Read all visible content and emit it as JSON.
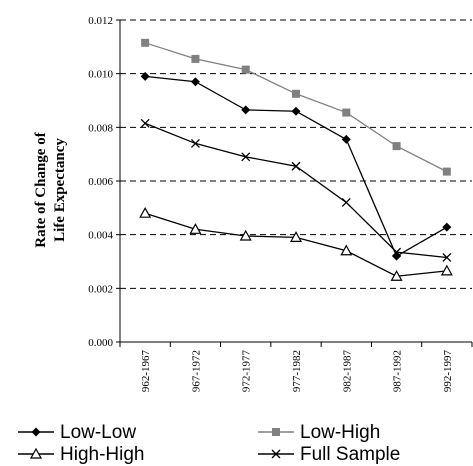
{
  "chart_data": {
    "type": "line",
    "ylabel": [
      "Rate of Change of",
      "Life Expectancy"
    ],
    "categories": [
      "962-1967",
      "967-1972",
      "972-1977",
      "977-1982",
      "982-1987",
      "987-1992",
      "992-1997"
    ],
    "ylim": [
      0,
      0.012
    ],
    "yticks": [
      "0.000",
      "0.002",
      "0.004",
      "0.006",
      "0.008",
      "0.010",
      "0.012"
    ],
    "grid": true,
    "legend_position": "bottom",
    "series": [
      {
        "name": "Low-Low",
        "marker": "diamond",
        "color": "#000000",
        "values": [
          0.0099,
          0.0097,
          0.00865,
          0.0086,
          0.00755,
          0.0032,
          0.00428
        ]
      },
      {
        "name": "Low-High",
        "marker": "square",
        "color": "#808080",
        "values": [
          0.01115,
          0.01055,
          0.01015,
          0.00925,
          0.00855,
          0.0073,
          0.00635
        ]
      },
      {
        "name": "High-High",
        "marker": "triangle",
        "color": "#000000",
        "values": [
          0.0048,
          0.0042,
          0.00395,
          0.0039,
          0.0034,
          0.00245,
          0.00265
        ]
      },
      {
        "name": "Full Sample",
        "marker": "x",
        "color": "#000000",
        "values": [
          0.00815,
          0.0074,
          0.0069,
          0.00655,
          0.0052,
          0.00335,
          0.00315
        ]
      }
    ]
  }
}
